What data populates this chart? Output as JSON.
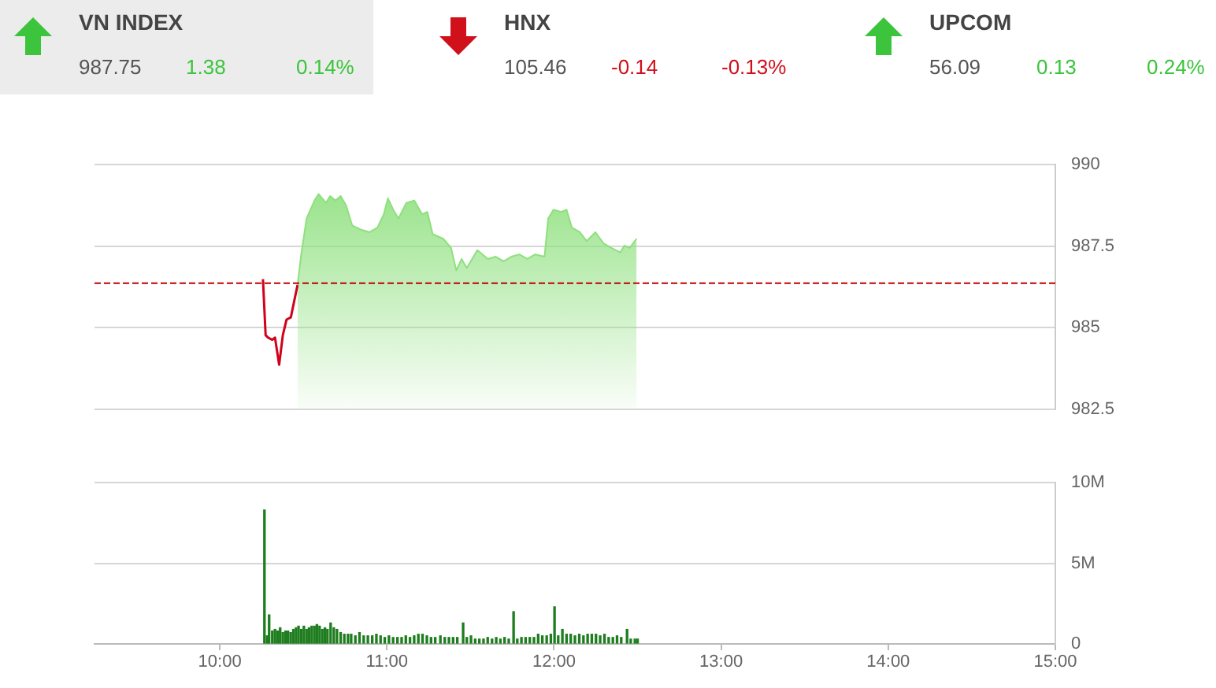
{
  "chart_data": [
    {
      "type": "other",
      "annotations": [
        "VN INDEX",
        "987.75",
        "1.38",
        "0.14%",
        "HNX",
        "105.46",
        "-0.14",
        "-0.13%",
        "UPCOM",
        "56.09",
        "0.13",
        "0.24%"
      ],
      "colors": [
        "#444444",
        "#555555",
        "#3cc43c",
        "#3cc43c",
        "#444444",
        "#555555",
        "#d0101b",
        "#d0101b",
        "#444444",
        "#555555",
        "#3cc43c",
        "#3cc43c"
      ]
    },
    {
      "type": "line",
      "xlim": [
        9.25,
        15
      ],
      "ylim": [
        982.5,
        990
      ],
      "yticks": [
        982.5,
        985,
        987.5,
        990
      ],
      "grid": "y",
      "tick_labels": "y",
      "marker": "none",
      "ref_lines": [
        {
          "axis": "y",
          "value": 986.37,
          "color": "#c00000",
          "line_style": "dashed"
        }
      ],
      "series": [
        {
          "type": "line",
          "color": "#d0021b",
          "x": [
            10.258,
            10.274,
            10.289,
            10.314,
            10.33,
            10.355,
            10.377,
            10.399,
            10.425,
            10.465
          ],
          "values": [
            986.49,
            984.77,
            984.7,
            984.63,
            984.7,
            983.87,
            984.77,
            985.25,
            985.32,
            986.31
          ]
        },
        {
          "type": "area",
          "color": "#8ee07e",
          "x": [
            10.465,
            10.487,
            10.519,
            10.566,
            10.591,
            10.613,
            10.635,
            10.66,
            10.692,
            10.723,
            10.755,
            10.792,
            10.849,
            10.896,
            10.943,
            10.981,
            11.006,
            11.038,
            11.069,
            11.116,
            11.164,
            11.211,
            11.242,
            11.274,
            11.337,
            11.384,
            11.415,
            11.447,
            11.478,
            11.541,
            11.572,
            11.604,
            11.651,
            11.698,
            11.745,
            11.792,
            11.84,
            11.887,
            11.943,
            11.965,
            11.997,
            12.044,
            12.075,
            12.107,
            12.154,
            12.195,
            12.248,
            12.296,
            12.343,
            12.396,
            12.421,
            12.453,
            12.494
          ],
          "values": [
            986.31,
            987.25,
            988.35,
            988.9,
            989.1,
            988.97,
            988.83,
            989.04,
            988.9,
            989.04,
            988.76,
            988.14,
            988,
            987.93,
            988.07,
            988.48,
            988.97,
            988.62,
            988.35,
            988.83,
            988.9,
            988.48,
            988.55,
            987.87,
            987.73,
            987.45,
            986.76,
            987.11,
            986.83,
            987.38,
            987.25,
            987.11,
            987.18,
            987.04,
            987.18,
            987.25,
            987.11,
            987.25,
            987.18,
            988.35,
            988.62,
            988.55,
            988.62,
            988.07,
            987.93,
            987.66,
            987.93,
            987.59,
            987.45,
            987.31,
            987.52,
            987.45,
            987.73
          ]
        }
      ]
    },
    {
      "type": "bar",
      "xlim": [
        9.25,
        15
      ],
      "ylim": [
        0,
        10
      ],
      "yticks": [
        {
          "value": 0,
          "label": "0"
        },
        {
          "value": 5,
          "label": "5M"
        },
        {
          "value": 10,
          "label": "10M"
        }
      ],
      "xticks": [
        {
          "value": 10,
          "label": "10:00"
        },
        {
          "value": 11,
          "label": "11:00"
        },
        {
          "value": 12,
          "label": "12:00"
        },
        {
          "value": 13,
          "label": "13:00"
        },
        {
          "value": 14,
          "label": "14:00"
        },
        {
          "value": 15,
          "label": "15:00"
        }
      ],
      "grid": "y",
      "series": [
        {
          "color": "#1e7d1e",
          "x": [
            10.267,
            10.283,
            10.295,
            10.314,
            10.33,
            10.346,
            10.361,
            10.377,
            10.393,
            10.408,
            10.424,
            10.44,
            10.456,
            10.471,
            10.487,
            10.503,
            10.519,
            10.534,
            10.55,
            10.566,
            10.581,
            10.597,
            10.613,
            10.629,
            10.644,
            10.663,
            10.682,
            10.701,
            10.723,
            10.745,
            10.767,
            10.786,
            10.811,
            10.836,
            10.861,
            10.886,
            10.912,
            10.937,
            10.962,
            10.987,
            11.012,
            11.037,
            11.063,
            11.088,
            11.113,
            11.138,
            11.163,
            11.188,
            11.213,
            11.239,
            11.264,
            11.289,
            11.32,
            11.346,
            11.371,
            11.396,
            11.421,
            11.456,
            11.478,
            11.503,
            11.528,
            11.553,
            11.578,
            11.603,
            11.629,
            11.654,
            11.679,
            11.704,
            11.729,
            11.758,
            11.78,
            11.805,
            11.83,
            11.855,
            11.88,
            11.905,
            11.93,
            11.956,
            11.981,
            12.003,
            12.025,
            12.05,
            12.075,
            12.1,
            12.125,
            12.151,
            12.176,
            12.201,
            12.226,
            12.251,
            12.276,
            12.302,
            12.327,
            12.352,
            12.377,
            12.402,
            12.437,
            12.459,
            12.484,
            12.5
          ],
          "values": [
            8.3,
            0.5,
            1.8,
            0.8,
            0.9,
            0.8,
            1.0,
            0.7,
            0.8,
            0.8,
            0.7,
            0.9,
            1.0,
            1.1,
            0.9,
            1.1,
            0.9,
            1.0,
            1.1,
            1.1,
            1.2,
            1.1,
            0.9,
            1.0,
            0.9,
            1.3,
            1.0,
            0.9,
            0.7,
            0.6,
            0.6,
            0.6,
            0.5,
            0.7,
            0.5,
            0.5,
            0.5,
            0.6,
            0.5,
            0.4,
            0.5,
            0.4,
            0.4,
            0.4,
            0.5,
            0.4,
            0.5,
            0.6,
            0.6,
            0.5,
            0.4,
            0.4,
            0.5,
            0.4,
            0.4,
            0.4,
            0.4,
            1.3,
            0.4,
            0.5,
            0.3,
            0.3,
            0.3,
            0.4,
            0.3,
            0.4,
            0.3,
            0.4,
            0.3,
            2.0,
            0.3,
            0.4,
            0.4,
            0.4,
            0.4,
            0.6,
            0.5,
            0.5,
            0.6,
            2.3,
            0.5,
            0.9,
            0.6,
            0.6,
            0.5,
            0.6,
            0.5,
            0.6,
            0.6,
            0.6,
            0.5,
            0.6,
            0.4,
            0.4,
            0.5,
            0.4,
            0.9,
            0.3,
            0.3,
            0.3
          ]
        }
      ]
    }
  ]
}
